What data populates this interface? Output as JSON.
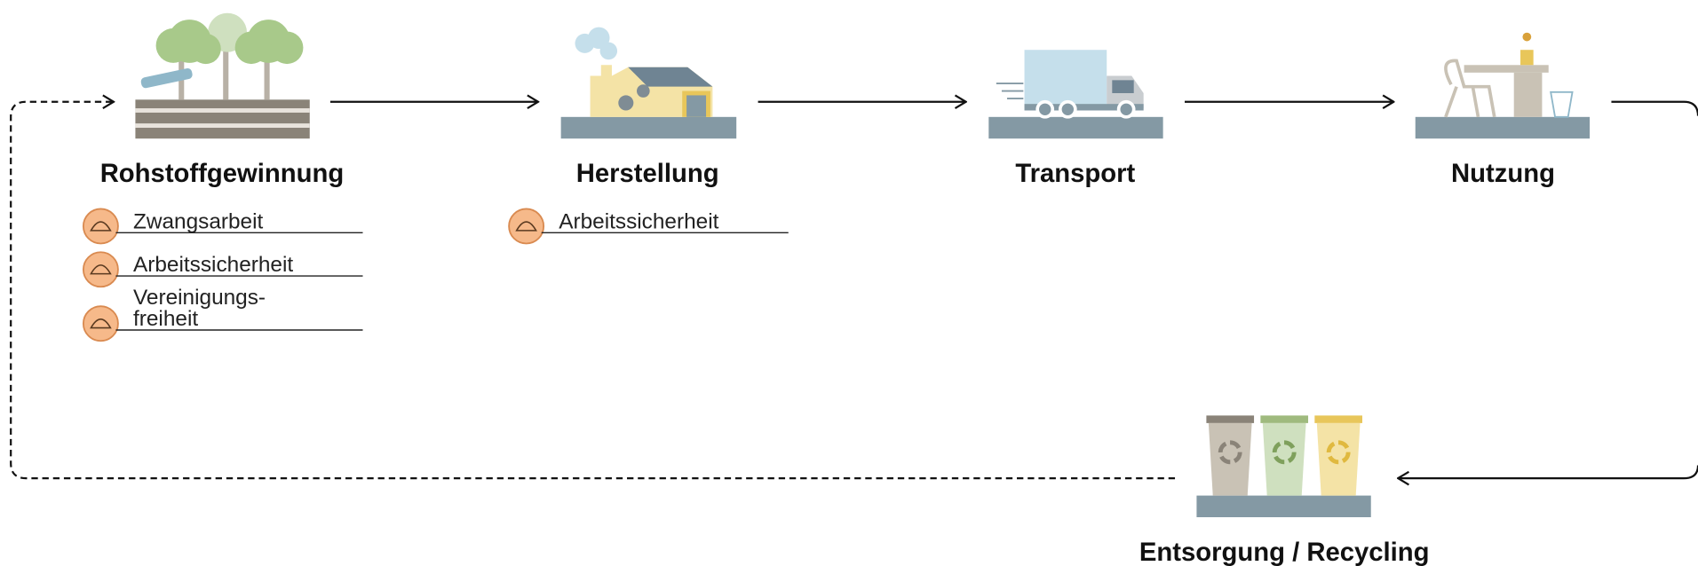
{
  "stages": [
    {
      "label": "Rohstoffgewinnung",
      "issues": [
        {
          "lines": [
            "Zwangsarbeit"
          ]
        },
        {
          "lines": [
            "Arbeitssicherheit"
          ]
        },
        {
          "lines": [
            "Vereinigungs-",
            "freiheit"
          ]
        }
      ]
    },
    {
      "label": "Herstellung",
      "issues": [
        {
          "lines": [
            "Arbeitssicherheit"
          ]
        }
      ]
    },
    {
      "label": "Transport",
      "issues": []
    },
    {
      "label": "Nutzung",
      "issues": []
    },
    {
      "label": "Entsorgung / Recycling",
      "issues": []
    }
  ]
}
